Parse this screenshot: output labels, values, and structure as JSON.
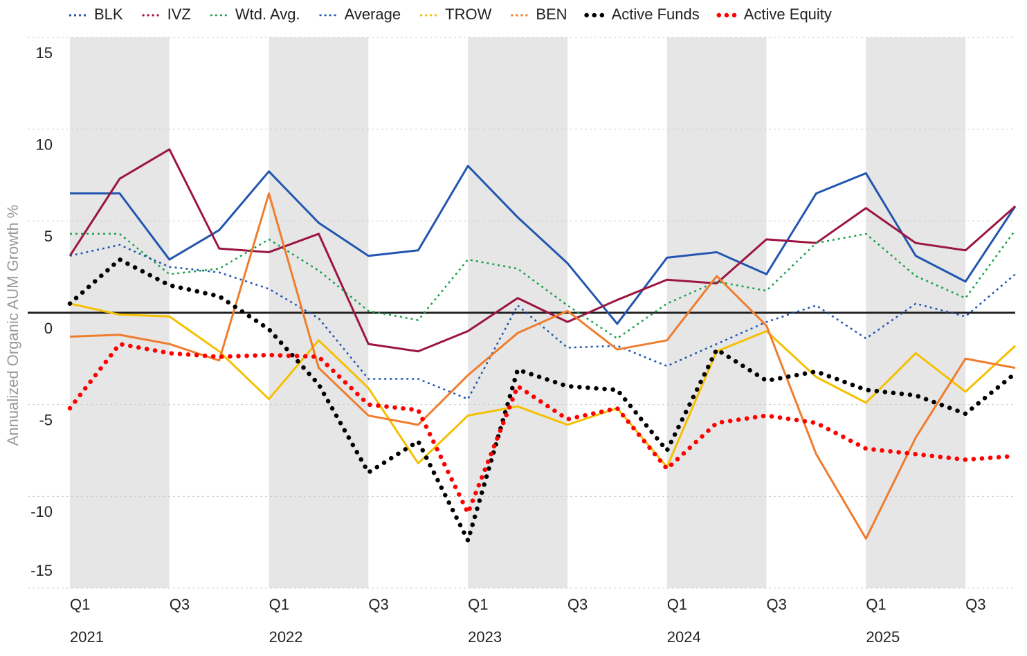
{
  "chart_data": {
    "type": "line",
    "y_label": "Annualized Organic AUM Growth %",
    "categories": [
      "Q1",
      null,
      "Q3",
      null,
      "Q1",
      null,
      "Q3",
      null,
      "Q1",
      null,
      "Q3",
      null,
      "Q1",
      null,
      "Q3",
      null,
      "Q1",
      null,
      "Q3",
      null
    ],
    "years": [
      "2021",
      "2022",
      "2023",
      "2024",
      "2025"
    ],
    "ylim": [
      -15,
      15
    ],
    "yticks": [
      -15,
      -10,
      -5,
      0,
      5,
      10,
      15
    ],
    "grid": true,
    "legend": "top",
    "series": [
      {
        "name": "BLK",
        "color": "#2155b0",
        "style": "solid",
        "values": [
          6.5,
          6.5,
          2.9,
          4.5,
          7.7,
          4.9,
          3.1,
          3.4,
          8.0,
          5.2,
          2.7,
          -0.6,
          3.0,
          3.3,
          2.1,
          6.5,
          7.6,
          3.1,
          1.7,
          5.8
        ]
      },
      {
        "name": "IVZ",
        "color": "#9b1540",
        "style": "solid",
        "values": [
          3.1,
          7.3,
          8.9,
          3.5,
          3.3,
          4.3,
          -1.7,
          -2.1,
          -1.0,
          0.8,
          -0.5,
          0.7,
          1.8,
          1.6,
          4.0,
          3.8,
          5.7,
          3.8,
          3.4,
          5.8
        ]
      },
      {
        "name": "Wtd. Avg.",
        "color": "#1aa04a",
        "style": "dotted",
        "values": [
          4.3,
          4.3,
          2.1,
          2.4,
          4.0,
          2.3,
          0.1,
          -0.4,
          2.9,
          2.4,
          0.4,
          -1.4,
          0.5,
          1.7,
          1.2,
          3.8,
          4.3,
          2.0,
          0.8,
          4.5
        ]
      },
      {
        "name": "Average",
        "color": "#2155b0",
        "style": "dotted",
        "values": [
          3.1,
          3.7,
          2.5,
          2.2,
          1.3,
          -0.3,
          -3.6,
          -3.6,
          -4.7,
          0.4,
          -1.9,
          -1.8,
          -2.9,
          -1.7,
          -0.5,
          0.4,
          -1.4,
          0.5,
          -0.2,
          2.1
        ]
      },
      {
        "name": "TROW",
        "color": "#f5c000",
        "style": "solid",
        "values": [
          0.5,
          -0.1,
          -0.2,
          -2.1,
          -4.7,
          -1.5,
          -4.1,
          -8.2,
          -5.6,
          -5.1,
          -6.1,
          -5.2,
          -8.4,
          -2.1,
          -1.0,
          -3.5,
          -4.9,
          -2.2,
          -4.3,
          -1.8
        ]
      },
      {
        "name": "BEN",
        "color": "#ef7d2d",
        "style": "solid",
        "values": [
          -1.3,
          -1.2,
          -1.7,
          -2.6,
          6.5,
          -3.0,
          -5.6,
          -6.1,
          -3.4,
          -1.1,
          0.1,
          -2.0,
          -1.5,
          2.0,
          -0.7,
          -7.7,
          -12.3,
          -6.8,
          -2.5,
          -3.0
        ]
      },
      {
        "name": "Active Funds",
        "color": "#000000",
        "style": "bold-dotted",
        "values": [
          0.5,
          2.9,
          1.5,
          0.9,
          -0.9,
          -3.9,
          -8.7,
          -7.0,
          -12.4,
          -3.1,
          -4.0,
          -4.2,
          -7.5,
          -2.0,
          -3.7,
          -3.2,
          -4.2,
          -4.5,
          -5.5,
          -3.3
        ]
      },
      {
        "name": "Active Equity",
        "color": "#ff0000",
        "style": "bold-dotted",
        "values": [
          -5.2,
          -1.7,
          -2.2,
          -2.4,
          -2.3,
          -2.4,
          -5.0,
          -5.3,
          -10.9,
          -4.0,
          -5.8,
          -5.2,
          -8.5,
          -6.0,
          -5.6,
          -6.0,
          -7.4,
          -7.7,
          -8.0,
          -7.8
        ]
      }
    ]
  }
}
